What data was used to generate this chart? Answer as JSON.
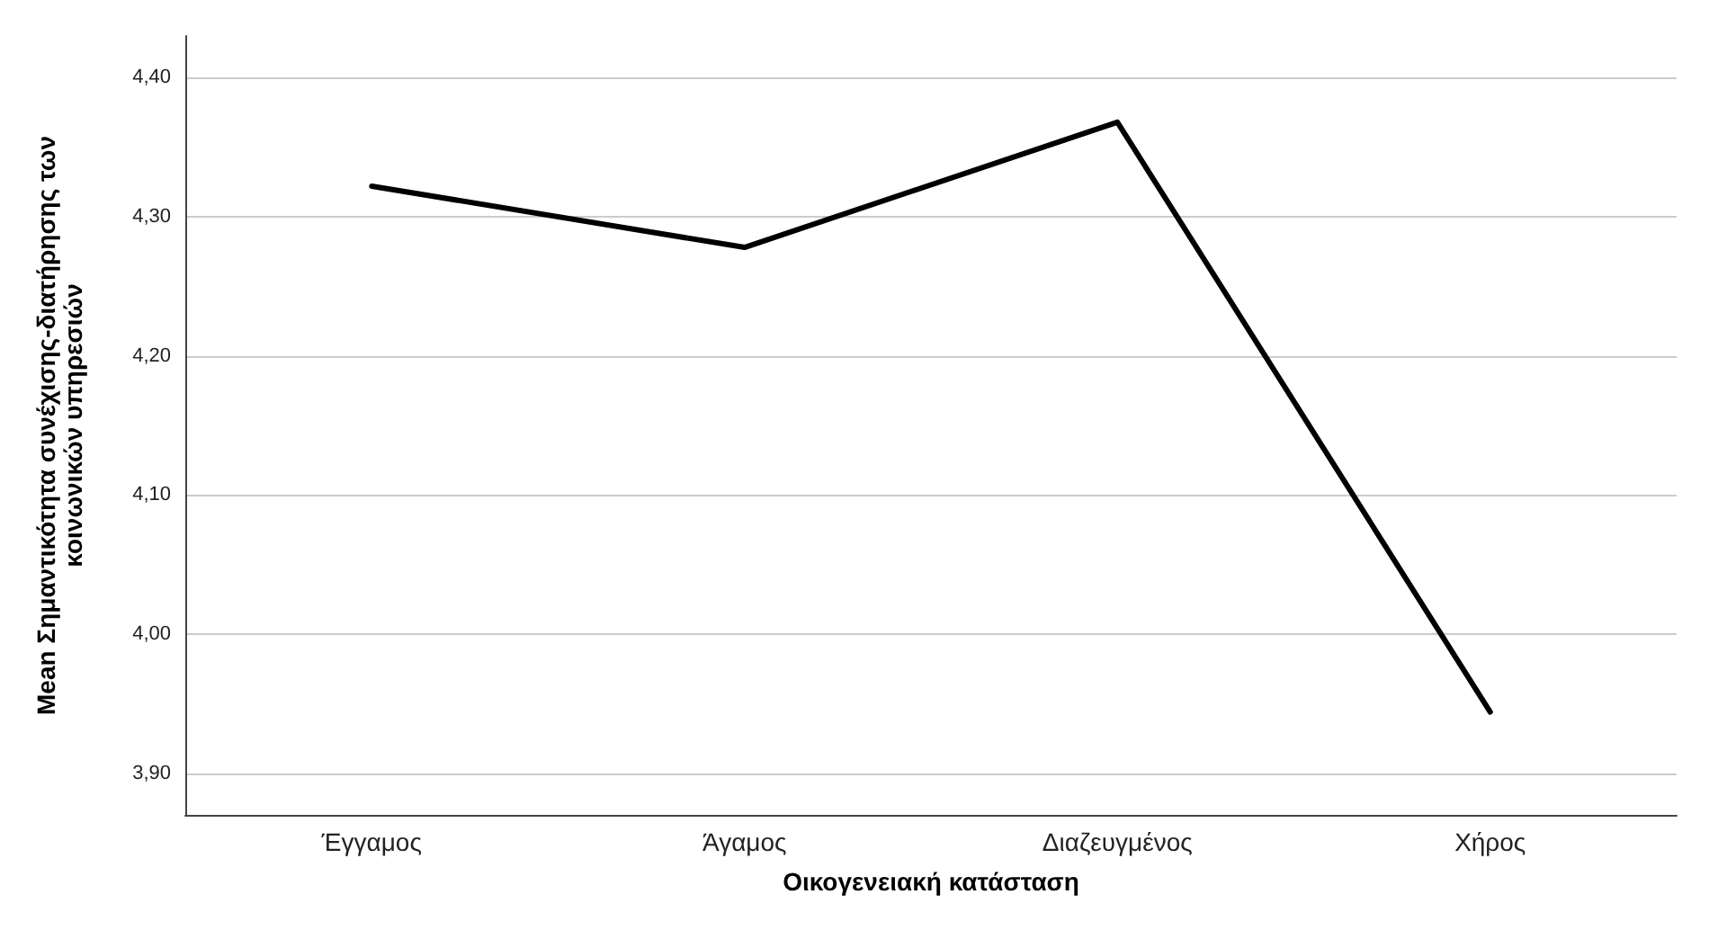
{
  "chart_data": {
    "type": "line",
    "xlabel": "Οικογενειακή κατάσταση",
    "ylabel": "Mean Σημαντικότητα συνέχισης-διατήρησης των\nκοινωνικών υπηρεσιών",
    "categories": [
      "Έγγαμος",
      "Άγαμος",
      "Διαζευγμένος",
      "Χήρος"
    ],
    "series": [
      {
        "color": "#000000",
        "values": [
          4.322,
          4.278,
          4.368,
          3.944
        ]
      }
    ],
    "ylim": [
      3.87,
      4.43
    ],
    "yticks": [
      {
        "value": 3.9,
        "label": "3,90"
      },
      {
        "value": 4.0,
        "label": "4,00"
      },
      {
        "value": 4.1,
        "label": "4,10"
      },
      {
        "value": 4.2,
        "label": "4,20"
      },
      {
        "value": 4.3,
        "label": "4,30"
      },
      {
        "value": 4.4,
        "label": "4,40"
      }
    ],
    "grid": "y",
    "marker": "none",
    "line_style": "solid"
  }
}
